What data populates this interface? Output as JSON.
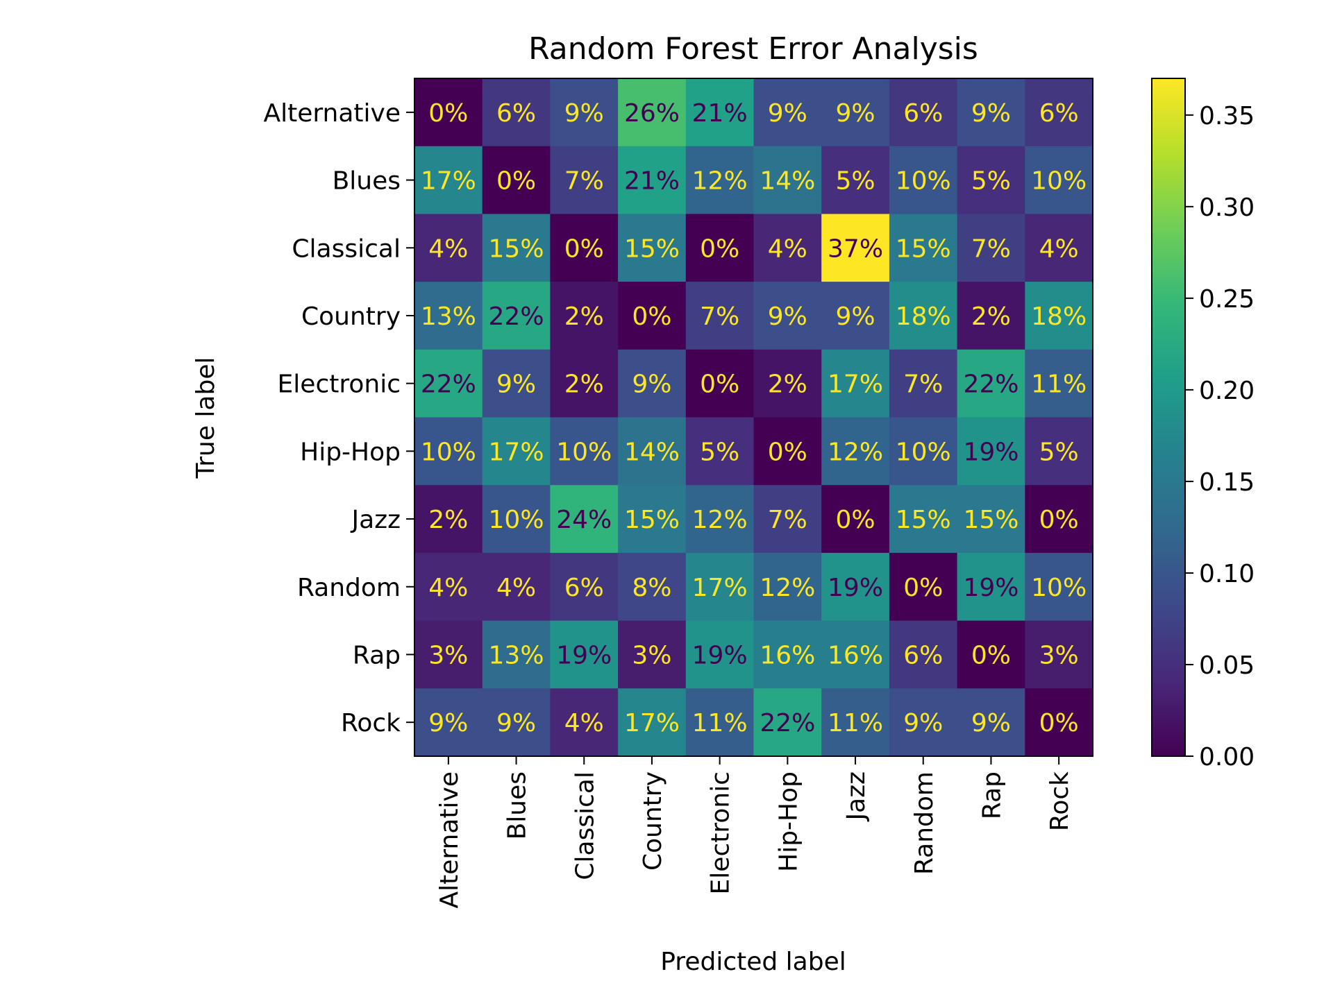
{
  "chart_data": {
    "type": "heatmap",
    "title": "Random Forest Error Analysis",
    "xlabel": "Predicted label",
    "ylabel": "True label",
    "x_categories": [
      "Alternative",
      "Blues",
      "Classical",
      "Country",
      "Electronic",
      "Hip-Hop",
      "Jazz",
      "Random",
      "Rap",
      "Rock"
    ],
    "y_categories": [
      "Alternative",
      "Blues",
      "Classical",
      "Country",
      "Electronic",
      "Hip-Hop",
      "Jazz",
      "Random",
      "Rap",
      "Rock"
    ],
    "values": [
      [
        0.0,
        0.06,
        0.09,
        0.26,
        0.21,
        0.09,
        0.09,
        0.06,
        0.09,
        0.06
      ],
      [
        0.17,
        0.0,
        0.07,
        0.21,
        0.12,
        0.14,
        0.05,
        0.1,
        0.05,
        0.1
      ],
      [
        0.04,
        0.15,
        0.0,
        0.15,
        0.0,
        0.04,
        0.37,
        0.15,
        0.07,
        0.04
      ],
      [
        0.13,
        0.22,
        0.02,
        0.0,
        0.07,
        0.09,
        0.09,
        0.18,
        0.02,
        0.18
      ],
      [
        0.22,
        0.09,
        0.02,
        0.09,
        0.0,
        0.02,
        0.17,
        0.07,
        0.22,
        0.11
      ],
      [
        0.1,
        0.17,
        0.1,
        0.14,
        0.05,
        0.0,
        0.12,
        0.1,
        0.19,
        0.05
      ],
      [
        0.02,
        0.1,
        0.24,
        0.15,
        0.12,
        0.07,
        0.0,
        0.15,
        0.15,
        0.0
      ],
      [
        0.04,
        0.04,
        0.06,
        0.08,
        0.17,
        0.12,
        0.19,
        0.0,
        0.19,
        0.1
      ],
      [
        0.03,
        0.13,
        0.19,
        0.03,
        0.19,
        0.16,
        0.16,
        0.06,
        0.0,
        0.03
      ],
      [
        0.09,
        0.09,
        0.04,
        0.17,
        0.11,
        0.22,
        0.11,
        0.09,
        0.09,
        0.0
      ]
    ],
    "cell_labels": [
      [
        "0%",
        "6%",
        "9%",
        "26%",
        "21%",
        "9%",
        "9%",
        "6%",
        "9%",
        "6%"
      ],
      [
        "17%",
        "0%",
        "7%",
        "21%",
        "12%",
        "14%",
        "5%",
        "10%",
        "5%",
        "10%"
      ],
      [
        "4%",
        "15%",
        "0%",
        "15%",
        "0%",
        "4%",
        "37%",
        "15%",
        "7%",
        "4%"
      ],
      [
        "13%",
        "22%",
        "2%",
        "0%",
        "7%",
        "9%",
        "9%",
        "18%",
        "2%",
        "18%"
      ],
      [
        "22%",
        "9%",
        "2%",
        "9%",
        "0%",
        "2%",
        "17%",
        "7%",
        "22%",
        "11%"
      ],
      [
        "10%",
        "17%",
        "10%",
        "14%",
        "5%",
        "0%",
        "12%",
        "10%",
        "19%",
        "5%"
      ],
      [
        "2%",
        "10%",
        "24%",
        "15%",
        "12%",
        "7%",
        "0%",
        "15%",
        "15%",
        "0%"
      ],
      [
        "4%",
        "4%",
        "6%",
        "8%",
        "17%",
        "12%",
        "19%",
        "0%",
        "19%",
        "10%"
      ],
      [
        "3%",
        "13%",
        "19%",
        "3%",
        "19%",
        "16%",
        "16%",
        "6%",
        "0%",
        "3%"
      ],
      [
        "9%",
        "9%",
        "4%",
        "17%",
        "11%",
        "22%",
        "11%",
        "9%",
        "9%",
        "0%"
      ]
    ],
    "colormap": "viridis",
    "vmin": 0.0,
    "vmax": 0.37,
    "colorbar_ticks": [
      0.0,
      0.05,
      0.1,
      0.15,
      0.2,
      0.25,
      0.3,
      0.35
    ],
    "colorbar_tick_labels": [
      "0.00",
      "0.05",
      "0.10",
      "0.15",
      "0.20",
      "0.25",
      "0.30",
      "0.35"
    ],
    "text_color_dark": "#440154",
    "text_color_light": "#fde725",
    "grid": false
  }
}
